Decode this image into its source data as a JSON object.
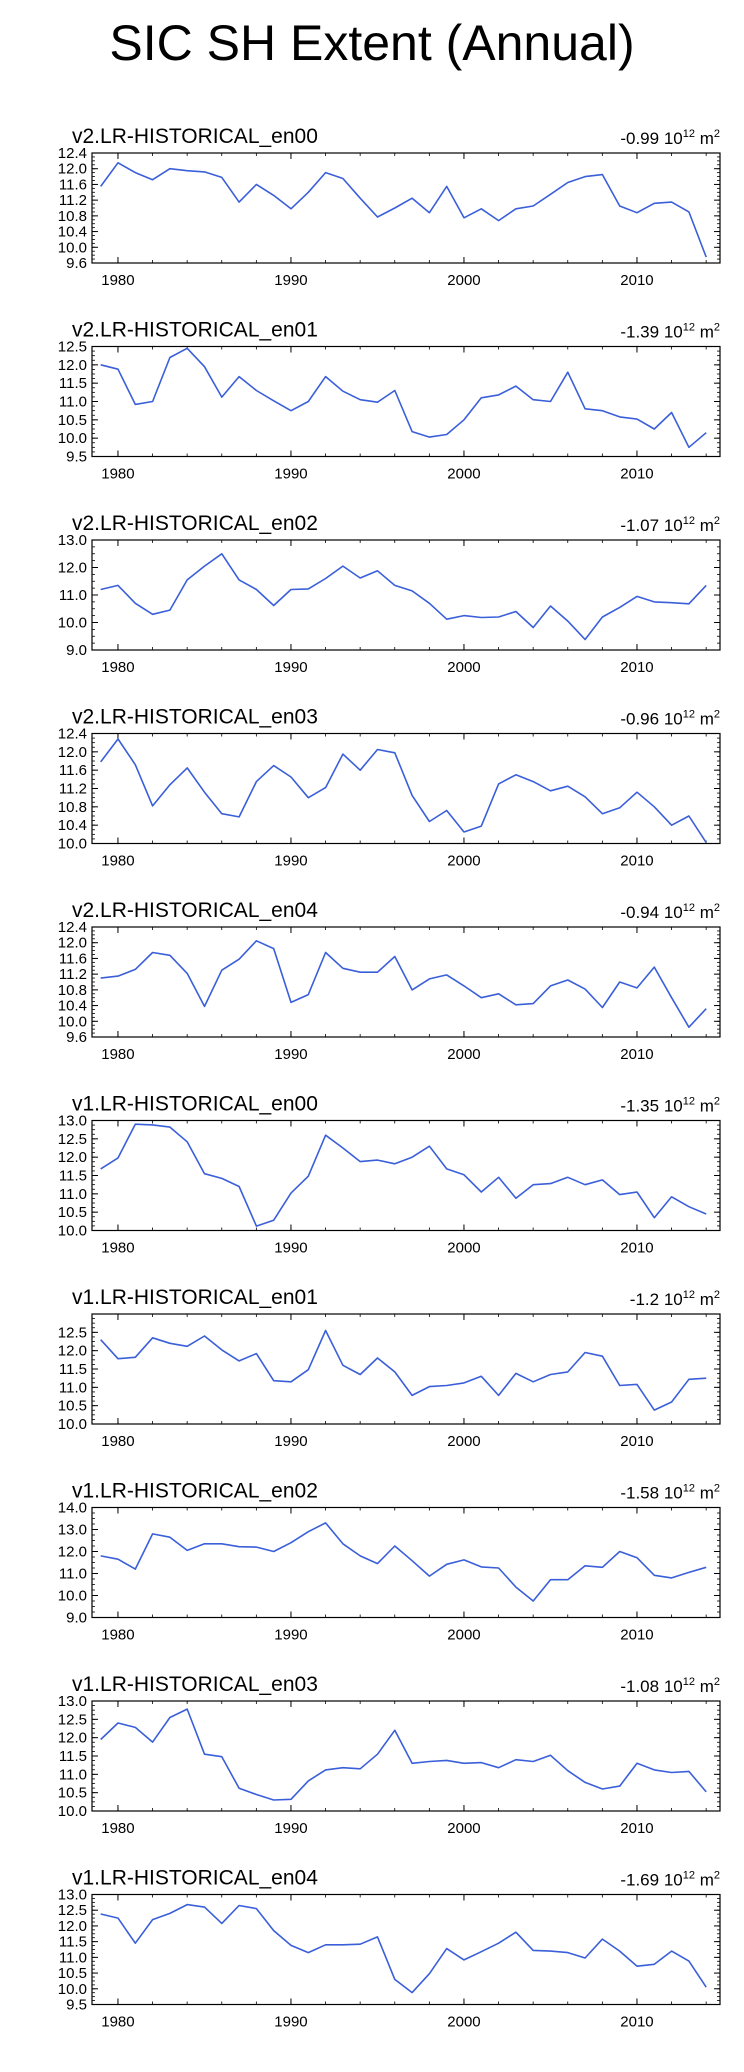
{
  "title": "SIC SH Extent (Annual)",
  "colors": {
    "line": "#3a5fd9",
    "axis": "#000000"
  },
  "chart_data": [
    {
      "type": "line",
      "title": "v2.LR-HISTORICAL_en00",
      "trend_value": "-0.99",
      "trend_unit_base": "10",
      "trend_unit_exp": "12",
      "trend_unit_tail": "m",
      "trend_unit_exp2": "2",
      "ylim": [
        9.6,
        12.4
      ],
      "yticks": [
        9.6,
        10.0,
        10.4,
        10.8,
        11.2,
        11.6,
        12.0,
        12.4
      ],
      "ytick_labels": [
        "9.6",
        "10.0",
        "10.4",
        "10.8",
        "11.2",
        "11.6",
        "12.0",
        "12.4"
      ],
      "xlim": [
        1978.5,
        2014.8
      ],
      "xticks": [
        1980,
        1990,
        2000,
        2010
      ],
      "xtick_labels": [
        "1980",
        "1990",
        "2000",
        "2010"
      ],
      "x_start": 1979,
      "values": [
        11.55,
        12.15,
        11.9,
        11.72,
        12.0,
        11.95,
        11.92,
        11.78,
        11.15,
        11.6,
        11.32,
        10.98,
        11.4,
        11.9,
        11.75,
        11.25,
        10.77,
        11.0,
        11.25,
        10.88,
        11.55,
        10.75,
        10.98,
        10.68,
        10.98,
        11.05,
        11.35,
        11.65,
        11.8,
        11.85,
        11.05,
        10.88,
        11.12,
        11.15,
        10.9,
        9.75
      ]
    },
    {
      "type": "line",
      "title": "v2.LR-HISTORICAL_en01",
      "trend_value": "-1.39",
      "trend_unit_base": "10",
      "trend_unit_exp": "12",
      "trend_unit_tail": "m",
      "trend_unit_exp2": "2",
      "ylim": [
        9.5,
        12.5
      ],
      "yticks": [
        9.5,
        10.0,
        10.5,
        11.0,
        11.5,
        12.0,
        12.5
      ],
      "ytick_labels": [
        "9.5",
        "10.0",
        "10.5",
        "11.0",
        "11.5",
        "12.0",
        "12.5"
      ],
      "xlim": [
        1978.5,
        2014.8
      ],
      "xticks": [
        1980,
        1990,
        2000,
        2010
      ],
      "xtick_labels": [
        "1980",
        "1990",
        "2000",
        "2010"
      ],
      "x_start": 1979,
      "values": [
        12.0,
        11.88,
        10.92,
        11.0,
        12.2,
        12.45,
        11.95,
        11.12,
        11.68,
        11.3,
        11.02,
        10.75,
        11.0,
        11.68,
        11.28,
        11.05,
        10.98,
        11.3,
        10.18,
        10.03,
        10.1,
        10.5,
        11.1,
        11.18,
        11.42,
        11.05,
        11.0,
        11.8,
        10.8,
        10.75,
        10.58,
        10.52,
        10.25,
        10.7,
        9.75,
        10.15
      ]
    },
    {
      "type": "line",
      "title": "v2.LR-HISTORICAL_en02",
      "trend_value": "-1.07",
      "trend_unit_base": "10",
      "trend_unit_exp": "12",
      "trend_unit_tail": "m",
      "trend_unit_exp2": "2",
      "ylim": [
        9.0,
        13.0
      ],
      "yticks": [
        9.0,
        10.0,
        11.0,
        12.0,
        13.0
      ],
      "ytick_labels": [
        "9.0",
        "10.0",
        "11.0",
        "12.0",
        "13.0"
      ],
      "xlim": [
        1978.5,
        2014.8
      ],
      "xticks": [
        1980,
        1990,
        2000,
        2010
      ],
      "xtick_labels": [
        "1980",
        "1990",
        "2000",
        "2010"
      ],
      "x_start": 1979,
      "values": [
        11.2,
        11.35,
        10.7,
        10.3,
        10.45,
        11.55,
        12.05,
        12.5,
        11.55,
        11.2,
        10.62,
        11.2,
        11.22,
        11.6,
        12.05,
        11.62,
        11.88,
        11.35,
        11.15,
        10.7,
        10.12,
        10.25,
        10.18,
        10.2,
        10.4,
        9.82,
        10.6,
        10.05,
        9.38,
        10.2,
        10.55,
        10.95,
        10.75,
        10.72,
        10.68,
        11.35
      ]
    },
    {
      "type": "line",
      "title": "v2.LR-HISTORICAL_en03",
      "trend_value": "-0.96",
      "trend_unit_base": "10",
      "trend_unit_exp": "12",
      "trend_unit_tail": "m",
      "trend_unit_exp2": "2",
      "ylim": [
        10.0,
        12.4
      ],
      "yticks": [
        10.0,
        10.4,
        10.8,
        11.2,
        11.6,
        12.0,
        12.4
      ],
      "ytick_labels": [
        "10.0",
        "10.4",
        "10.8",
        "11.2",
        "11.6",
        "12.0",
        "12.4"
      ],
      "xlim": [
        1978.5,
        2014.8
      ],
      "xticks": [
        1980,
        1990,
        2000,
        2010
      ],
      "xtick_labels": [
        "1980",
        "1990",
        "2000",
        "2010"
      ],
      "x_start": 1979,
      "values": [
        11.78,
        12.28,
        11.72,
        10.82,
        11.28,
        11.65,
        11.12,
        10.65,
        10.58,
        11.35,
        11.7,
        11.45,
        11.0,
        11.22,
        11.95,
        11.6,
        12.05,
        11.98,
        11.05,
        10.48,
        10.72,
        10.25,
        10.38,
        11.3,
        11.5,
        11.35,
        11.15,
        11.25,
        11.02,
        10.65,
        10.78,
        11.12,
        10.8,
        10.4,
        10.6,
        10.02
      ]
    },
    {
      "type": "line",
      "title": "v2.LR-HISTORICAL_en04",
      "trend_value": "-0.94",
      "trend_unit_base": "10",
      "trend_unit_exp": "12",
      "trend_unit_tail": "m",
      "trend_unit_exp2": "2",
      "ylim": [
        9.6,
        12.4
      ],
      "yticks": [
        9.6,
        10.0,
        10.4,
        10.8,
        11.2,
        11.6,
        12.0,
        12.4
      ],
      "ytick_labels": [
        "9.6",
        "10.0",
        "10.4",
        "10.8",
        "11.2",
        "11.6",
        "12.0",
        "12.4"
      ],
      "xlim": [
        1978.5,
        2014.8
      ],
      "xticks": [
        1980,
        1990,
        2000,
        2010
      ],
      "xtick_labels": [
        "1980",
        "1990",
        "2000",
        "2010"
      ],
      "x_start": 1979,
      "values": [
        11.1,
        11.15,
        11.32,
        11.75,
        11.68,
        11.22,
        10.38,
        11.3,
        11.58,
        12.05,
        11.85,
        10.48,
        10.68,
        11.75,
        11.35,
        11.25,
        11.25,
        11.65,
        10.8,
        11.08,
        11.18,
        10.9,
        10.6,
        10.7,
        10.42,
        10.45,
        10.9,
        11.05,
        10.82,
        10.35,
        11.0,
        10.85,
        11.38,
        10.6,
        9.85,
        10.32
      ]
    },
    {
      "type": "line",
      "title": "v1.LR-HISTORICAL_en00",
      "trend_value": "-1.35",
      "trend_unit_base": "10",
      "trend_unit_exp": "12",
      "trend_unit_tail": "m",
      "trend_unit_exp2": "2",
      "ylim": [
        10.0,
        13.0
      ],
      "yticks": [
        10.0,
        10.5,
        11.0,
        11.5,
        12.0,
        12.5,
        13.0
      ],
      "ytick_labels": [
        "10.0",
        "10.5",
        "11.0",
        "11.5",
        "12.0",
        "12.5",
        "13.0"
      ],
      "xlim": [
        1978.5,
        2014.8
      ],
      "xticks": [
        1980,
        1990,
        2000,
        2010
      ],
      "xtick_labels": [
        "1980",
        "1990",
        "2000",
        "2010"
      ],
      "x_start": 1979,
      "values": [
        11.68,
        11.98,
        12.9,
        12.88,
        12.82,
        12.42,
        11.55,
        11.42,
        11.2,
        10.12,
        10.28,
        11.02,
        11.48,
        12.6,
        12.25,
        11.88,
        11.92,
        11.82,
        12.0,
        12.3,
        11.68,
        11.52,
        11.05,
        11.45,
        10.88,
        11.25,
        11.28,
        11.45,
        11.25,
        11.38,
        10.98,
        11.05,
        10.35,
        10.92,
        10.65,
        10.45
      ]
    },
    {
      "type": "line",
      "title": "v1.LR-HISTORICAL_en01",
      "trend_value": "-1.2",
      "trend_unit_base": "10",
      "trend_unit_exp": "12",
      "trend_unit_tail": "m",
      "trend_unit_exp2": "2",
      "ylim": [
        10.0,
        13.0
      ],
      "yticks": [
        10.0,
        10.5,
        11.0,
        11.5,
        12.0,
        12.5
      ],
      "ytick_labels": [
        "10.0",
        "10.5",
        "11.0",
        "11.5",
        "12.0",
        "12.5"
      ],
      "xlim": [
        1978.5,
        2014.8
      ],
      "xticks": [
        1980,
        1990,
        2000,
        2010
      ],
      "xtick_labels": [
        "1980",
        "1990",
        "2000",
        "2010"
      ],
      "x_start": 1979,
      "values": [
        12.3,
        11.78,
        11.82,
        12.35,
        12.2,
        12.12,
        12.4,
        12.02,
        11.72,
        11.92,
        11.18,
        11.15,
        11.48,
        12.55,
        11.6,
        11.35,
        11.8,
        11.42,
        10.78,
        11.02,
        11.05,
        11.12,
        11.3,
        10.78,
        11.38,
        11.15,
        11.35,
        11.42,
        11.95,
        11.85,
        11.05,
        11.08,
        10.38,
        10.6,
        11.22,
        11.25
      ]
    },
    {
      "type": "line",
      "title": "v1.LR-HISTORICAL_en02",
      "trend_value": "-1.58",
      "trend_unit_base": "10",
      "trend_unit_exp": "12",
      "trend_unit_tail": "m",
      "trend_unit_exp2": "2",
      "ylim": [
        9.0,
        14.0
      ],
      "yticks": [
        9.0,
        10.0,
        11.0,
        12.0,
        13.0,
        14.0
      ],
      "ytick_labels": [
        "9.0",
        "10.0",
        "11.0",
        "12.0",
        "13.0",
        "14.0"
      ],
      "xlim": [
        1978.5,
        2014.8
      ],
      "xticks": [
        1980,
        1990,
        2000,
        2010
      ],
      "xtick_labels": [
        "1980",
        "1990",
        "2000",
        "2010"
      ],
      "x_start": 1979,
      "values": [
        11.8,
        11.65,
        11.2,
        12.8,
        12.65,
        12.05,
        12.35,
        12.35,
        12.22,
        12.2,
        12.0,
        12.4,
        12.9,
        13.3,
        12.35,
        11.8,
        11.45,
        12.25,
        11.58,
        10.88,
        11.42,
        11.62,
        11.3,
        11.25,
        10.38,
        9.75,
        10.72,
        10.72,
        11.35,
        11.28,
        12.0,
        11.72,
        10.92,
        10.8,
        11.05,
        11.28
      ]
    },
    {
      "type": "line",
      "title": "v1.LR-HISTORICAL_en03",
      "trend_value": "-1.08",
      "trend_unit_base": "10",
      "trend_unit_exp": "12",
      "trend_unit_tail": "m",
      "trend_unit_exp2": "2",
      "ylim": [
        10.0,
        13.0
      ],
      "yticks": [
        10.0,
        10.5,
        11.0,
        11.5,
        12.0,
        12.5,
        13.0
      ],
      "ytick_labels": [
        "10.0",
        "10.5",
        "11.0",
        "11.5",
        "12.0",
        "12.5",
        "13.0"
      ],
      "xlim": [
        1978.5,
        2014.8
      ],
      "xticks": [
        1980,
        1990,
        2000,
        2010
      ],
      "xtick_labels": [
        "1980",
        "1990",
        "2000",
        "2010"
      ],
      "x_start": 1979,
      "values": [
        11.95,
        12.4,
        12.28,
        11.88,
        12.55,
        12.78,
        11.55,
        11.48,
        10.62,
        10.45,
        10.3,
        10.32,
        10.82,
        11.12,
        11.18,
        11.15,
        11.55,
        12.2,
        11.3,
        11.35,
        11.38,
        11.3,
        11.32,
        11.18,
        11.4,
        11.35,
        11.52,
        11.1,
        10.78,
        10.6,
        10.68,
        11.3,
        11.12,
        11.05,
        11.08,
        10.52
      ]
    },
    {
      "type": "line",
      "title": "v1.LR-HISTORICAL_en04",
      "trend_value": "-1.69",
      "trend_unit_base": "10",
      "trend_unit_exp": "12",
      "trend_unit_tail": "m",
      "trend_unit_exp2": "2",
      "ylim": [
        9.5,
        13.0
      ],
      "yticks": [
        9.5,
        10.0,
        10.5,
        11.0,
        11.5,
        12.0,
        12.5,
        13.0
      ],
      "ytick_labels": [
        "9.5",
        "10.0",
        "10.5",
        "11.0",
        "11.5",
        "12.0",
        "12.5",
        "13.0"
      ],
      "xlim": [
        1978.5,
        2014.8
      ],
      "xticks": [
        1980,
        1990,
        2000,
        2010
      ],
      "xtick_labels": [
        "1980",
        "1990",
        "2000",
        "2010"
      ],
      "x_start": 1979,
      "values": [
        12.38,
        12.25,
        11.45,
        12.2,
        12.4,
        12.68,
        12.6,
        12.08,
        12.65,
        12.55,
        11.85,
        11.38,
        11.15,
        11.4,
        11.4,
        11.42,
        11.65,
        10.3,
        9.88,
        10.48,
        11.28,
        10.92,
        11.18,
        11.45,
        11.8,
        11.22,
        11.2,
        11.15,
        10.98,
        11.58,
        11.2,
        10.72,
        10.78,
        11.2,
        10.88,
        10.05
      ]
    }
  ]
}
